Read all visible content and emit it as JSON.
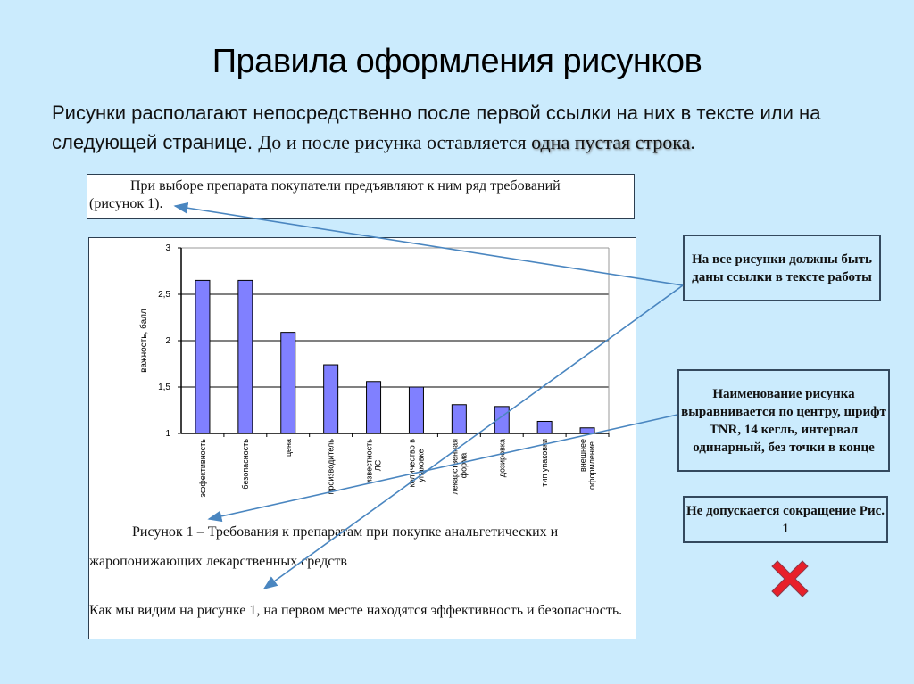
{
  "slide": {
    "title": "Правила оформления рисунков",
    "subtitle_part1": "Рисунки располагают непосредственно после первой ссылки на них в тексте или на следующей странице.",
    "subtitle_part2": "До и после рисунка оставляется ",
    "subtitle_emphasis": "одна пустая строка",
    "subtitle_end": "."
  },
  "reference_text": {
    "line1": "При выборе препарата покупатели предъявляют к ним ряд требований",
    "line2": "(рисунок 1)."
  },
  "figure": {
    "caption_line1": "Рисунок 1 – Требования к препаратам при покупке анальгетических и",
    "caption_line2": "жаропонижающих лекарственных средств",
    "after_text": "Как мы видим на рисунке 1, на первом месте находятся эффективность и безопасность."
  },
  "notes": [
    {
      "text": "На все рисунки должны быть даны ссылки в тексте работы"
    },
    {
      "text": "Наименование рисунка выравнивается по центру, шрифт TNR, 14 кегль, интервал одинарный, без точки в конце"
    },
    {
      "text": "Не допускается сокращение Рис. 1"
    }
  ],
  "icons": {
    "forbidden": "red-x-cross"
  },
  "colors": {
    "background": "#cbebfd",
    "bar_fill": "#8080ff",
    "arrow": "#4a86c0",
    "cross": "#e8202a"
  },
  "chart_data": {
    "type": "bar",
    "title": "",
    "xlabel": "",
    "ylabel": "важность, балл",
    "ylim": [
      1,
      3
    ],
    "yticks": [
      "1",
      "1,5",
      "2",
      "2,5",
      "3"
    ],
    "grid": true,
    "legend": "none",
    "categories": [
      "эффективность",
      "безопасность",
      "цена",
      "производитель",
      "известность ЛС",
      "количество в упаковке",
      "лекарственная форма",
      "дозировка",
      "тип упаковки",
      "внешнее оформление"
    ],
    "category_lines": [
      [
        "эффективность"
      ],
      [
        "безопасность"
      ],
      [
        "цена"
      ],
      [
        "производитель"
      ],
      [
        "известность",
        "ЛС"
      ],
      [
        "количество в",
        "упаковке"
      ],
      [
        "лекарственная",
        "форма"
      ],
      [
        "дозировка"
      ],
      [
        "тип упаковки"
      ],
      [
        "внешнее",
        "оформление"
      ]
    ],
    "values": [
      2.65,
      2.65,
      2.09,
      1.74,
      1.56,
      1.5,
      1.31,
      1.29,
      1.13,
      1.06
    ]
  }
}
